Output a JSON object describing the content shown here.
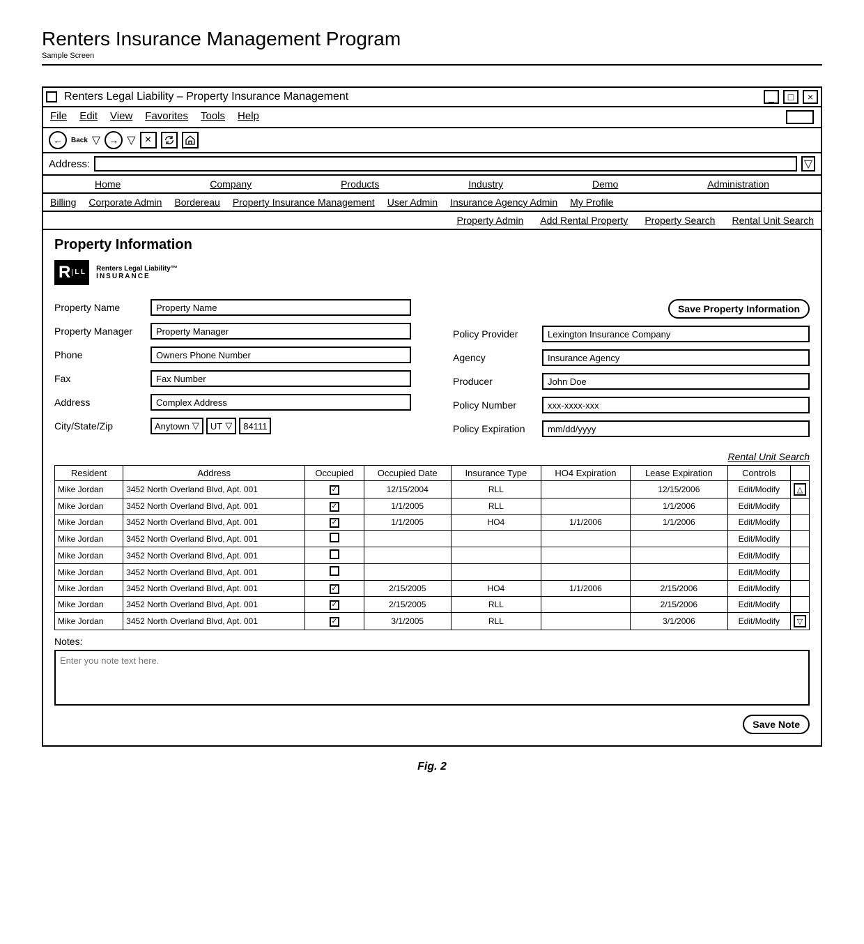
{
  "page": {
    "title": "Renters Insurance Management Program",
    "subtitle": "Sample Screen",
    "figure_label": "Fig. 2"
  },
  "window": {
    "title": "Renters Legal Liability – Property Insurance Management"
  },
  "menubar": {
    "file": "File",
    "edit": "Edit",
    "view": "View",
    "favorites": "Favorites",
    "tools": "Tools",
    "help": "Help"
  },
  "toolbar": {
    "back_label": "Back"
  },
  "addressbar": {
    "label": "Address:",
    "value": ""
  },
  "nav1": {
    "home": "Home",
    "company": "Company",
    "products": "Products",
    "industry": "Industry",
    "demo": "Demo",
    "administration": "Administration"
  },
  "nav2": {
    "billing": "Billing",
    "corporate_admin": "Corporate Admin",
    "bordereau": "Bordereau",
    "pim": "Property Insurance Management",
    "user_admin": "User Admin",
    "iaa": "Insurance Agency Admin",
    "my_profile": "My Profile"
  },
  "nav3": {
    "property_admin": "Property Admin",
    "add_rental": "Add Rental Property",
    "property_search": "Property Search",
    "rental_search": "Rental Unit Search"
  },
  "section": {
    "title": "Property Information",
    "logo_main": "R",
    "logo_sub": "L\nL",
    "logo_text_1": "Renters Legal Liability™",
    "logo_text_2": "INSURANCE"
  },
  "form": {
    "labels": {
      "property_name": "Property Name",
      "property_manager": "Property Manager",
      "phone": "Phone",
      "fax": "Fax",
      "address": "Address",
      "csz": "City/State/Zip",
      "policy_provider": "Policy Provider",
      "agency": "Agency",
      "producer": "Producer",
      "policy_number": "Policy Number",
      "policy_expiration": "Policy Expiration"
    },
    "values": {
      "property_name": "Property Name",
      "property_manager": "Property Manager",
      "phone": "Owners Phone Number",
      "fax": "Fax Number",
      "address": "Complex Address",
      "city": "Anytown",
      "state": "UT",
      "zip": "84111",
      "policy_provider": "Lexington Insurance Company",
      "agency": "Insurance Agency",
      "producer": "John Doe",
      "policy_number": "xxx-xxxx-xxx",
      "policy_expiration": "mm/dd/yyyy"
    },
    "save_button": "Save Property Information"
  },
  "table": {
    "search_link": "Rental Unit Search",
    "headers": {
      "resident": "Resident",
      "address": "Address",
      "occupied": "Occupied",
      "occupied_date": "Occupied Date",
      "insurance_type": "Insurance Type",
      "ho4_expiration": "HO4 Expiration",
      "lease_expiration": "Lease Expiration",
      "controls": "Controls"
    },
    "edit_label": "Edit/Modify",
    "rows": [
      {
        "resident": "Mike Jordan",
        "address": "3452 North Overland Blvd, Apt. 001",
        "occupied": true,
        "occupied_date": "12/15/2004",
        "insurance_type": "RLL",
        "ho4_expiration": "",
        "lease_expiration": "12/15/2006"
      },
      {
        "resident": "Mike Jordan",
        "address": "3452 North Overland Blvd, Apt. 001",
        "occupied": true,
        "occupied_date": "1/1/2005",
        "insurance_type": "RLL",
        "ho4_expiration": "",
        "lease_expiration": "1/1/2006"
      },
      {
        "resident": "Mike Jordan",
        "address": "3452 North Overland Blvd, Apt. 001",
        "occupied": true,
        "occupied_date": "1/1/2005",
        "insurance_type": "HO4",
        "ho4_expiration": "1/1/2006",
        "lease_expiration": "1/1/2006"
      },
      {
        "resident": "Mike Jordan",
        "address": "3452 North Overland Blvd, Apt. 001",
        "occupied": false,
        "occupied_date": "",
        "insurance_type": "",
        "ho4_expiration": "",
        "lease_expiration": ""
      },
      {
        "resident": "Mike Jordan",
        "address": "3452 North Overland Blvd, Apt. 001",
        "occupied": false,
        "occupied_date": "",
        "insurance_type": "",
        "ho4_expiration": "",
        "lease_expiration": ""
      },
      {
        "resident": "Mike Jordan",
        "address": "3452 North Overland Blvd, Apt. 001",
        "occupied": false,
        "occupied_date": "",
        "insurance_type": "",
        "ho4_expiration": "",
        "lease_expiration": ""
      },
      {
        "resident": "Mike Jordan",
        "address": "3452 North Overland Blvd, Apt. 001",
        "occupied": true,
        "occupied_date": "2/15/2005",
        "insurance_type": "HO4",
        "ho4_expiration": "1/1/2006",
        "lease_expiration": "2/15/2006"
      },
      {
        "resident": "Mike Jordan",
        "address": "3452 North Overland Blvd, Apt. 001",
        "occupied": true,
        "occupied_date": "2/15/2005",
        "insurance_type": "RLL",
        "ho4_expiration": "",
        "lease_expiration": "2/15/2006"
      },
      {
        "resident": "Mike Jordan",
        "address": "3452 North Overland Blvd, Apt. 001",
        "occupied": true,
        "occupied_date": "3/1/2005",
        "insurance_type": "RLL",
        "ho4_expiration": "",
        "lease_expiration": "3/1/2006"
      }
    ]
  },
  "notes": {
    "label": "Notes:",
    "placeholder": "Enter you note text here.",
    "save_label": "Save Note"
  }
}
